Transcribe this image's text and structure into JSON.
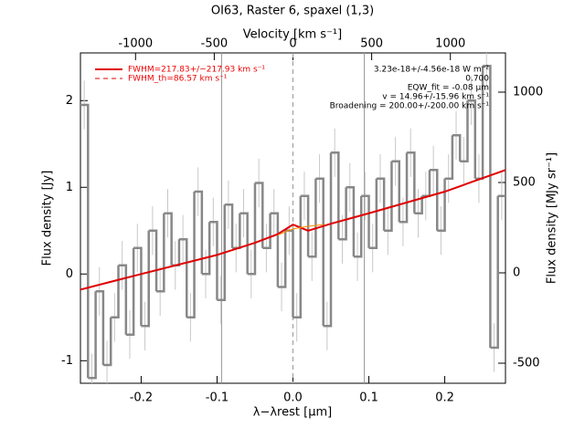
{
  "chart_data": {
    "type": "step",
    "title": "OI63, Raster 6, spaxel (1,3)",
    "xlabel": "λ−λrest [µm]",
    "ylabel": "Flux density [Jy]",
    "x2label": "Velocity [km s⁻¹]",
    "y2label": "Flux density [MJy sr⁻¹]",
    "xlim": [
      -0.28,
      0.28
    ],
    "ylim": [
      -1.26,
      2.55
    ],
    "x2lim": [
      -1350,
      1350
    ],
    "y2lim": [
      -611,
      1217
    ],
    "xticks": [
      -0.2,
      -0.1,
      {
        "value": 0,
        "label": "0.0"
      },
      0.1,
      0.2
    ],
    "yticks": [
      -1,
      0,
      1,
      2
    ],
    "x2ticks": [
      -1000,
      -500,
      0,
      500,
      1000
    ],
    "y2ticks": [
      -500,
      0,
      500,
      1000
    ],
    "vlines": [
      -0.094,
      0.094
    ],
    "dashed_vline": 0,
    "spectrum": {
      "color": "#888888",
      "error": 0.28,
      "x": [
        -0.275,
        -0.265,
        -0.255,
        -0.245,
        -0.235,
        -0.225,
        -0.215,
        -0.205,
        -0.195,
        -0.185,
        -0.175,
        -0.165,
        -0.155,
        -0.145,
        -0.135,
        -0.125,
        -0.115,
        -0.105,
        -0.095,
        -0.085,
        -0.075,
        -0.065,
        -0.055,
        -0.045,
        -0.035,
        -0.025,
        -0.015,
        -0.005,
        0.005,
        0.015,
        0.025,
        0.035,
        0.045,
        0.055,
        0.065,
        0.075,
        0.085,
        0.095,
        0.105,
        0.115,
        0.125,
        0.135,
        0.145,
        0.155,
        0.165,
        0.175,
        0.185,
        0.195,
        0.205,
        0.215,
        0.225,
        0.235,
        0.245,
        0.255,
        0.265,
        0.275
      ],
      "values": [
        1.95,
        -1.2,
        -0.2,
        -1.05,
        -0.5,
        0.1,
        -0.7,
        0.3,
        -0.6,
        0.5,
        -0.2,
        0.7,
        0.1,
        0.4,
        -0.5,
        0.95,
        0.0,
        0.6,
        -0.3,
        0.8,
        0.3,
        0.7,
        0.0,
        1.05,
        0.3,
        0.7,
        -0.15,
        0.5,
        -0.5,
        0.9,
        0.2,
        1.1,
        -0.6,
        1.4,
        0.4,
        1.0,
        0.2,
        0.9,
        0.3,
        1.1,
        0.5,
        1.3,
        0.6,
        1.4,
        0.7,
        0.9,
        1.2,
        0.5,
        1.1,
        1.6,
        1.3,
        2.0,
        1.1,
        2.4,
        -0.85,
        0.9
      ]
    },
    "series": [
      {
        "name": "FWHM=217.83+/−217.93 km s⁻¹",
        "color": "#e00000",
        "width": 2,
        "x": [
          -0.28,
          -0.2,
          -0.1,
          -0.05,
          -0.02,
          0,
          0.02,
          0.05,
          0.1,
          0.2,
          0.28
        ],
        "values": [
          -0.18,
          0.0,
          0.22,
          0.36,
          0.46,
          0.57,
          0.5,
          0.58,
          0.7,
          0.95,
          1.2
        ]
      },
      {
        "name": "FWHM_th=86.57 km s⁻¹",
        "color": "#e00000",
        "width": 1,
        "dashed": true,
        "x": [],
        "values": []
      },
      {
        "color": "#ff8c00",
        "width": 1,
        "x": [
          -0.02,
          0,
          0.02,
          0.04
        ],
        "values": [
          0.45,
          0.52,
          0.55,
          0.57
        ]
      }
    ],
    "annotations": [
      "3.23e-18+/-4.56e-18 W m⁻²",
      "0.700",
      "EQW_fit = -0.08 µm",
      "v = 14.96+/-15.96 km s⁻¹",
      "Broadening = 200.00+/-200.00 km s⁻¹"
    ]
  }
}
